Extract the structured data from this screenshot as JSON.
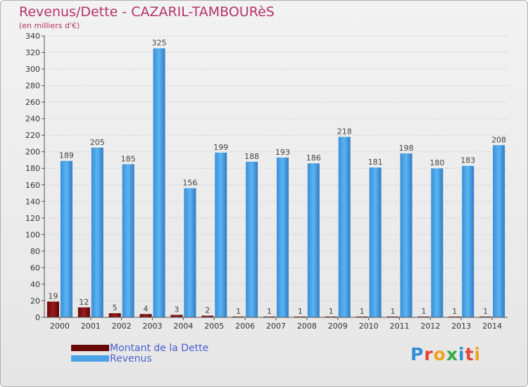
{
  "header": {
    "title": "Revenus/Dette - CAZARIL-TAMBOURèS",
    "subtitle": "(en milliers d'€)"
  },
  "chart_data": {
    "type": "bar",
    "title": "Revenus/Dette - CAZARIL-TAMBOURèS",
    "ylabel": "(en milliers d'€)",
    "xlabel": "",
    "ylim": [
      0,
      340
    ],
    "ytick_step": 20,
    "grid": true,
    "categories": [
      "2000",
      "2001",
      "2002",
      "2003",
      "2004",
      "2005",
      "2006",
      "2007",
      "2008",
      "2009",
      "2010",
      "2011",
      "2012",
      "2013",
      "2014"
    ],
    "series": [
      {
        "name": "Montant de la Dette",
        "color": "#7a0c0c",
        "values": [
          19,
          12,
          5,
          4,
          3,
          2,
          1,
          1,
          1,
          1,
          1,
          1,
          1,
          1,
          1
        ]
      },
      {
        "name": "Revenus",
        "color": "#4aa3e6",
        "values": [
          189,
          205,
          185,
          325,
          156,
          199,
          188,
          193,
          186,
          218,
          181,
          198,
          180,
          183,
          208
        ]
      }
    ]
  },
  "legend": {
    "items": [
      {
        "label": "Montant de la Dette",
        "color": "#7a0c0c"
      },
      {
        "label": "Revenus",
        "color": "#4aa3e6"
      }
    ]
  },
  "logo": {
    "letters": [
      {
        "char": "P",
        "color": "#2f8fd8"
      },
      {
        "char": "r",
        "color": "#e2463a"
      },
      {
        "char": "o",
        "color": "#f0a21e"
      },
      {
        "char": "x",
        "color": "#3aa84a"
      },
      {
        "char": "i",
        "color": "#2f8fd8"
      },
      {
        "char": "t",
        "color": "#e2463a"
      },
      {
        "char": "i",
        "color": "#f0a21e"
      }
    ]
  }
}
